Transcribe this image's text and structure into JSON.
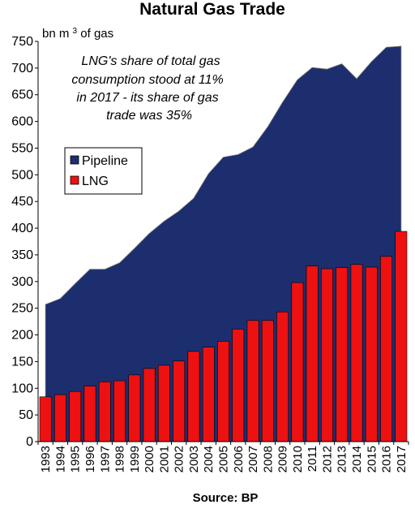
{
  "chart_data": {
    "type": "area+bar",
    "title": "Natural Gas Trade",
    "unit_label_prefix": "bn m",
    "unit_label_sup": "3",
    "unit_label_suffix": " of gas",
    "source": "Source: BP",
    "annotation": [
      "LNG's share of total gas",
      "consumption stood at 11%",
      "in 2017 - its share of gas",
      "trade was 35%"
    ],
    "ylim": [
      0,
      750
    ],
    "yticks": [
      0,
      50,
      100,
      150,
      200,
      250,
      300,
      350,
      400,
      450,
      500,
      550,
      600,
      650,
      700,
      750
    ],
    "grid": false,
    "legend_placement": "left",
    "categories": [
      "1993",
      "1994",
      "1995",
      "1996",
      "1997",
      "1998",
      "1999",
      "2000",
      "2001",
      "2002",
      "2003",
      "2004",
      "2005",
      "2006",
      "2007",
      "2008",
      "2009",
      "2010",
      "2011",
      "2012",
      "2013",
      "2014",
      "2015",
      "2016",
      "2017"
    ],
    "series": [
      {
        "name": "Pipeline",
        "kind": "area",
        "color": "#1c2e6e",
        "values": [
          257,
          268,
          296,
          323,
          323,
          335,
          362,
          390,
          413,
          432,
          456,
          502,
          533,
          538,
          552,
          590,
          636,
          678,
          701,
          698,
          708,
          680,
          712,
          739,
          741
        ]
      },
      {
        "name": "LNG",
        "kind": "bar",
        "color": "#ee1111",
        "values": [
          84,
          88,
          94,
          104,
          112,
          114,
          125,
          137,
          143,
          151,
          169,
          177,
          188,
          211,
          227,
          227,
          243,
          298,
          329,
          324,
          326,
          332,
          327,
          347,
          394
        ]
      }
    ]
  }
}
